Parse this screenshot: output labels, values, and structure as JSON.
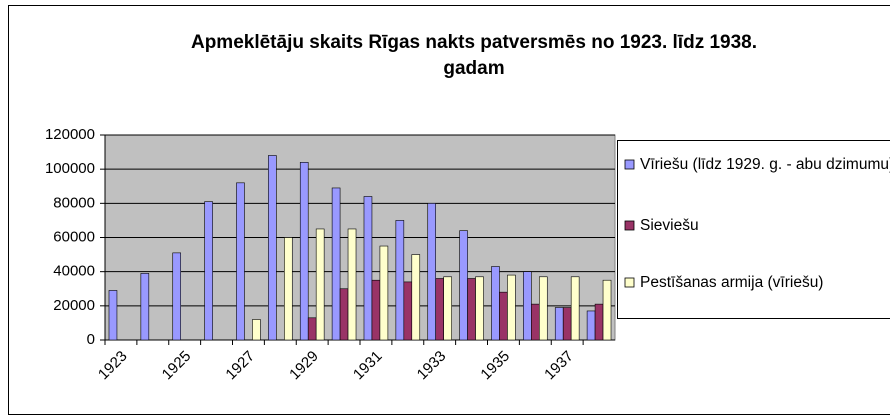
{
  "chart_data": {
    "type": "bar",
    "title": "Apmeklētāju skaits Rīgas nakts patversmēs no 1923. līdz 1938. gadam",
    "categories": [
      "1923",
      null,
      "1925",
      null,
      "1927",
      null,
      "1929",
      null,
      "1931",
      null,
      "1933",
      null,
      "1935",
      null,
      "1937",
      null
    ],
    "series": [
      {
        "name": "Vīriešu (līdz 1929. g. - abu dzimumu)",
        "color": "#9999ff",
        "values": [
          29000,
          39000,
          51000,
          81000,
          92000,
          108000,
          104000,
          89000,
          84000,
          70000,
          80000,
          64000,
          43000,
          40000,
          19000,
          17000
        ]
      },
      {
        "name": "Sieviešu",
        "color": "#993366",
        "values": [
          null,
          null,
          null,
          null,
          null,
          null,
          13000,
          30000,
          35000,
          34000,
          36000,
          36000,
          28000,
          21000,
          19000,
          21000
        ]
      },
      {
        "name": "Pestīšanas armija (vīriešu)",
        "color": "#ffffcc",
        "values": [
          null,
          null,
          null,
          null,
          12000,
          60000,
          65000,
          65000,
          55000,
          50000,
          37000,
          37000,
          38000,
          37000,
          37000,
          35000
        ]
      }
    ],
    "ylim": [
      0,
      120000
    ],
    "yticks": [
      0,
      20000,
      40000,
      60000,
      80000,
      100000,
      120000
    ],
    "grid": true,
    "plot_background": "#c0c0c0",
    "legend": "right"
  }
}
